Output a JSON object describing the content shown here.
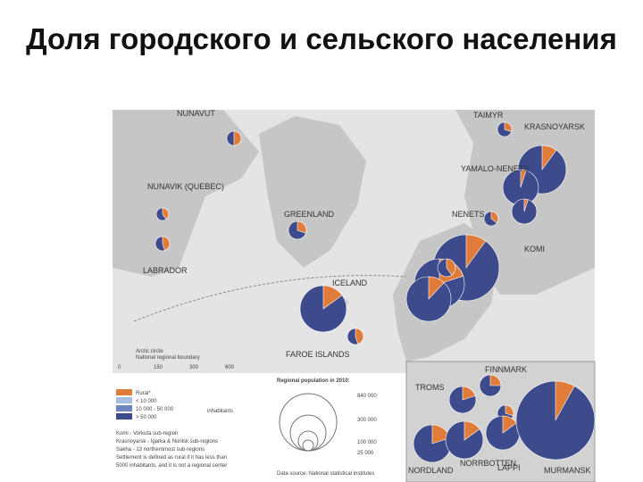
{
  "header": {
    "title": "Доля городского и сельского населения"
  },
  "labels": [
    "NUNAVUT",
    "NUNAVIK (QUEBEC)",
    "GREENLAND",
    "LABRADOR",
    "ICELAND",
    "FAROE ISLANDS",
    "TAIMYR",
    "KRASNOYARSK",
    "YAMALO-NENETS",
    "NENETS",
    "KOMI"
  ],
  "inset_labels": [
    "FINNMARK",
    "TROMS",
    "LAPPI",
    "MURMANSK",
    "NORDLAND",
    "NORRBOTTEN"
  ],
  "pies": [
    {
      "rural_share": 50
    },
    {
      "rural_share": 40
    },
    {
      "rural_share": 45
    },
    {
      "rural_share": 30
    },
    {
      "rural_share": 15
    },
    {
      "rural_share": 45
    },
    {
      "rural_share": 30
    },
    {
      "rural_share": 10
    },
    {
      "rural_share": 5
    },
    {
      "rural_share": 35
    },
    {
      "rural_share": 5
    },
    {
      "rural_share": 10
    },
    {
      "rural_share": 20
    },
    {
      "rural_share": 12
    },
    {
      "rural_share": 40
    }
  ],
  "inset_pies": [
    {
      "rural_share": 20
    },
    {
      "rural_share": 25
    },
    {
      "rural_share": 30
    },
    {
      "rural_share": 15
    },
    {
      "rural_share": 8
    },
    {
      "rural_share": 20
    },
    {
      "rural_share": 15
    }
  ],
  "legend": {
    "lines": [
      "Arctic circle",
      "National regional boundary"
    ],
    "scale": [
      "0",
      "150",
      "300",
      "600"
    ],
    "classes": [
      "Rural*",
      "< 10 000",
      "10 000 - 50 000",
      "> 50 000"
    ],
    "unit": "inhabitants",
    "notes": [
      "Komi - Vorkuta sub-region",
      "Krasnoyarsk - Igarka & Norilsk sub-regions",
      "Sakha - 13 northernmost sub-regions",
      "Settlement is defined as rural if it has less than",
      "5000 inhabitants, and it is not a regional center"
    ],
    "size_title": "Regional population in 2010:",
    "sizes": [
      "840 000",
      "300 000",
      "100 000",
      "25 000"
    ],
    "source": "Data source: National statistical institutes"
  }
}
